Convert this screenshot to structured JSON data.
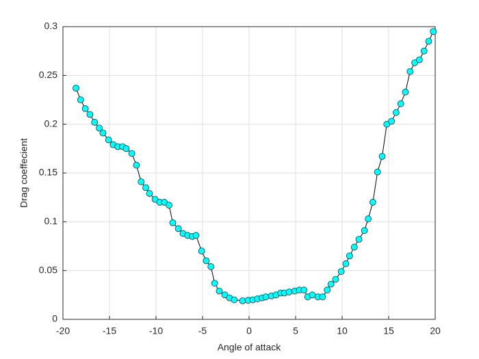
{
  "chart_data": {
    "type": "line",
    "xlabel": "Angle of attack",
    "ylabel": "Drag coeffecient",
    "x": [
      -18.6,
      -18.1,
      -17.6,
      -17.1,
      -16.6,
      -16.1,
      -15.7,
      -15.1,
      -14.6,
      -14.1,
      -13.6,
      -13.2,
      -12.6,
      -12.1,
      -11.6,
      -11.1,
      -10.7,
      -10.1,
      -9.6,
      -9.1,
      -8.6,
      -8.2,
      -7.6,
      -7.1,
      -6.6,
      -6.1,
      -5.7,
      -5.1,
      -4.6,
      -4.1,
      -3.7,
      -3.2,
      -2.6,
      -2.1,
      -1.6,
      -0.7,
      -0.1,
      0.4,
      0.9,
      1.4,
      1.8,
      2.4,
      2.9,
      3.4,
      3.8,
      4.3,
      4.9,
      5.4,
      5.9,
      6.3,
      6.8,
      7.4,
      7.9,
      8.4,
      8.8,
      9.3,
      9.9,
      10.4,
      10.8,
      11.3,
      11.8,
      12.4,
      12.8,
      13.3,
      13.8,
      14.3,
      14.8,
      15.3,
      15.8,
      16.3,
      16.8,
      17.3,
      17.8,
      18.3,
      18.8,
      19.3,
      19.8
    ],
    "series": [
      {
        "name": "Drag coeffecient",
        "color": "#00ffff",
        "values": [
          0.237,
          0.225,
          0.216,
          0.21,
          0.202,
          0.196,
          0.191,
          0.184,
          0.179,
          0.177,
          0.177,
          0.175,
          0.17,
          0.158,
          0.141,
          0.135,
          0.129,
          0.123,
          0.12,
          0.12,
          0.117,
          0.099,
          0.093,
          0.088,
          0.086,
          0.085,
          0.086,
          0.07,
          0.06,
          0.054,
          0.037,
          0.029,
          0.025,
          0.022,
          0.02,
          0.019,
          0.0195,
          0.02,
          0.021,
          0.022,
          0.023,
          0.024,
          0.025,
          0.027,
          0.027,
          0.028,
          0.029,
          0.03,
          0.03,
          0.023,
          0.025,
          0.023,
          0.023,
          0.03,
          0.036,
          0.041,
          0.049,
          0.057,
          0.065,
          0.074,
          0.082,
          0.091,
          0.103,
          0.12,
          0.151,
          0.167,
          0.2,
          0.203,
          0.212,
          0.221,
          0.233,
          0.254,
          0.263,
          0.266,
          0.275,
          0.285,
          0.295
        ]
      }
    ],
    "xlim": [
      -20,
      20
    ],
    "xticks": [
      -20,
      -15,
      -10,
      -5,
      0,
      5,
      10,
      15,
      20
    ],
    "ylim": [
      0,
      0.3
    ],
    "yticks": [
      0,
      0.05,
      0.1,
      0.15,
      0.2,
      0.25,
      0.3
    ],
    "grid": true
  }
}
